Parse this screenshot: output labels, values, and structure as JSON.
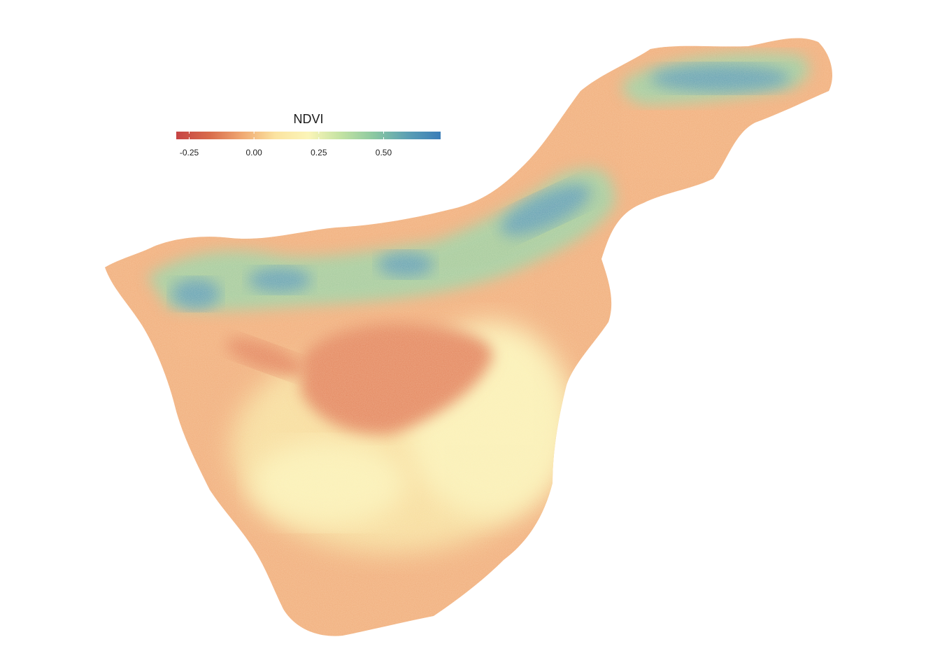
{
  "legend": {
    "title": "NDVI",
    "ticks": [
      {
        "value": -0.25,
        "label": "-0.25"
      },
      {
        "value": 0.0,
        "label": "0.00"
      },
      {
        "value": 0.25,
        "label": "0.25"
      },
      {
        "value": 0.5,
        "label": "0.50"
      }
    ],
    "range": [
      -0.3,
      0.72
    ],
    "palette": [
      "#c64444",
      "#d86b4b",
      "#f0a972",
      "#fbe3a0",
      "#fbf5b8",
      "#c2e2a2",
      "#8ac8a1",
      "#5b9fb4",
      "#3b7db8"
    ]
  },
  "map": {
    "colors": {
      "background": "#ffffff",
      "land_base": "#f2b07f",
      "dry_center": "#e58a63",
      "light": "#f8dea0",
      "pale": "#fbf1b8",
      "green": "#9fd0a4",
      "blue": "#5f9ebb"
    }
  }
}
